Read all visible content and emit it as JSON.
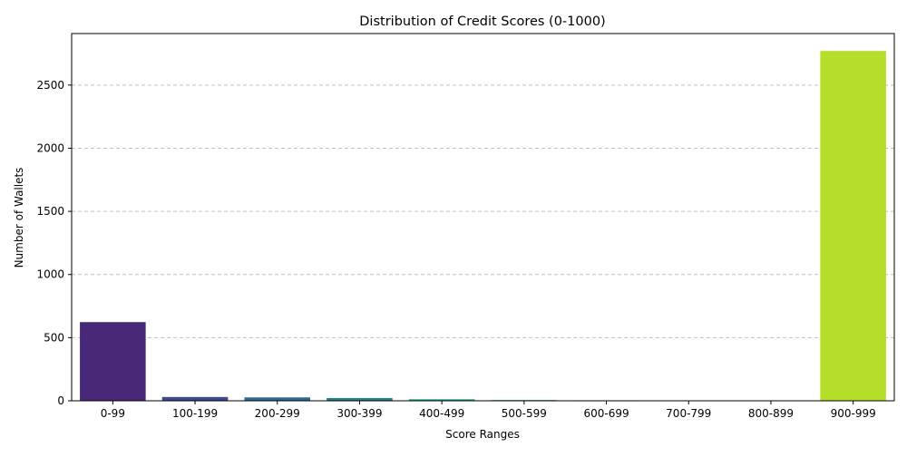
{
  "chart_data": {
    "type": "bar",
    "title": "Distribution of Credit Scores (0-1000)",
    "xlabel": "Score Ranges",
    "ylabel": "Number of Wallets",
    "categories": [
      "0-99",
      "100-199",
      "200-299",
      "300-399",
      "400-499",
      "500-599",
      "600-699",
      "700-799",
      "800-899",
      "900-999"
    ],
    "values": [
      623,
      30,
      27,
      22,
      12,
      6,
      4,
      3,
      2,
      2770
    ],
    "colors": [
      "#482878",
      "#3e4989",
      "#31688e",
      "#26828e",
      "#1f9e89",
      "#35b779",
      "#6ece58",
      "#9dd93b",
      "#c8e020",
      "#b5de2b"
    ],
    "ylim": [
      0,
      2908
    ],
    "yticks": [
      0,
      500,
      1000,
      1500,
      2000,
      2500
    ],
    "grid": "horizontal dashed",
    "legend": "none"
  }
}
